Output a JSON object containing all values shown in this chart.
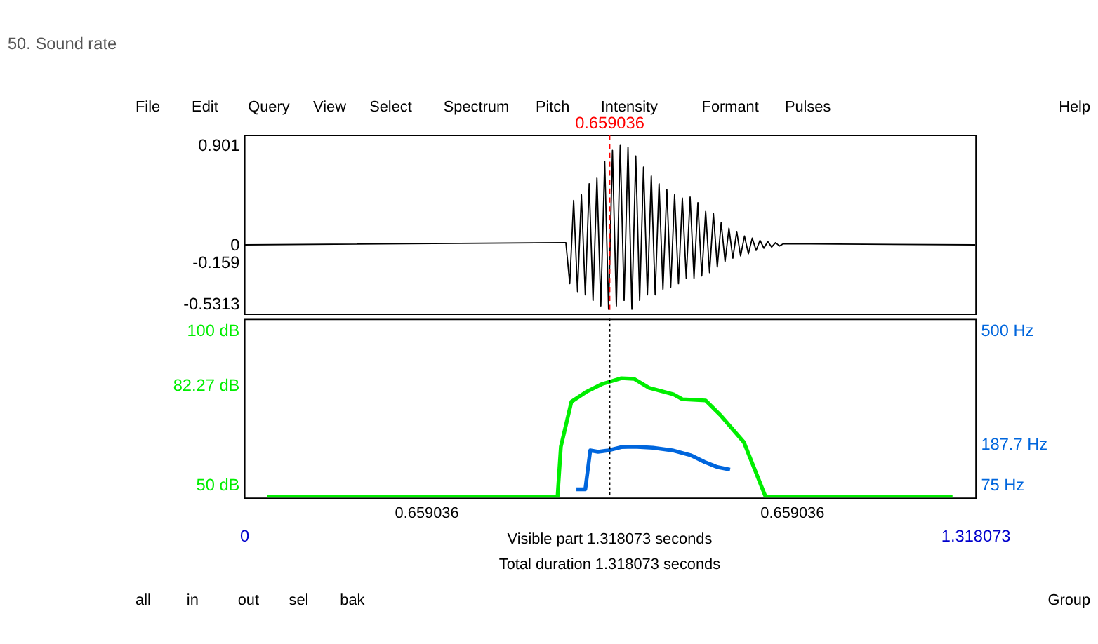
{
  "chart_data": [
    {
      "type": "line",
      "title": "50. Sound rate",
      "xlim": [
        0,
        1.318073
      ],
      "ylim": [
        -0.62,
        0.99
      ],
      "yticks": [
        0.901,
        0,
        -0.159,
        -0.5313
      ],
      "tick_labels": "y",
      "grid": false,
      "ref_lines": [
        {
          "axis": "x",
          "value": 0.659036,
          "label": "0.659036",
          "color": "#ff0000",
          "line_style": "dashed"
        }
      ],
      "annotations": [
        "File",
        "Edit",
        "Query",
        "View",
        "Select",
        "Spectrum",
        "Pitch",
        "Intensity",
        "Formant",
        "Pulses",
        "Help"
      ],
      "series": [
        {
          "color": "#000000",
          "x": [
            0,
            0.58,
            0.587,
            0.594,
            0.601,
            0.608,
            0.615,
            0.622,
            0.629,
            0.636,
            0.643,
            0.65,
            0.657,
            0.664,
            0.671,
            0.678,
            0.685,
            0.692,
            0.699,
            0.706,
            0.713,
            0.72,
            0.727,
            0.734,
            0.741,
            0.748,
            0.755,
            0.762,
            0.769,
            0.776,
            0.783,
            0.79,
            0.797,
            0.804,
            0.811,
            0.818,
            0.825,
            0.832,
            0.839,
            0.846,
            0.853,
            0.86,
            0.867,
            0.874,
            0.881,
            0.888,
            0.895,
            0.902,
            0.909,
            0.916,
            0.923,
            0.93,
            0.937,
            0.944,
            0.951,
            0.958,
            0.965,
            0.972,
            1.318073
          ],
          "values": [
            0,
            0.02,
            -0.35,
            0.4,
            -0.42,
            0.45,
            -0.45,
            0.55,
            -0.5,
            0.6,
            -0.55,
            0.75,
            -0.58,
            0.85,
            -0.55,
            0.9,
            -0.5,
            0.88,
            -0.58,
            0.8,
            -0.5,
            0.7,
            -0.45,
            0.62,
            -0.45,
            0.55,
            -0.4,
            0.5,
            -0.38,
            0.45,
            -0.35,
            0.42,
            -0.3,
            0.43,
            -0.3,
            0.38,
            -0.28,
            0.3,
            -0.25,
            0.28,
            -0.2,
            0.2,
            -0.15,
            0.15,
            -0.12,
            0.12,
            -0.1,
            0.08,
            -0.08,
            0.06,
            -0.05,
            0.04,
            -0.03,
            0.03,
            -0.02,
            0.02,
            -0.01,
            0.01,
            0
          ]
        }
      ]
    },
    {
      "type": "line",
      "xlim": [
        0,
        1.318073
      ],
      "xticks": [
        0,
        1.318073
      ],
      "ylim": [
        45.9,
        103.7
      ],
      "yticks": [
        {
          "value": 100,
          "label": "100 dB"
        },
        {
          "value": 82.27,
          "label": "82.27 dB"
        },
        {
          "value": 50,
          "label": "50 dB"
        }
      ],
      "y2lim": [
        40,
        531.6
      ],
      "y2ticks": [
        {
          "value": 500,
          "label": "500 Hz"
        },
        {
          "value": 187.7,
          "label": "187.7 Hz"
        },
        {
          "value": 75,
          "label": "75 Hz"
        }
      ],
      "grid": false,
      "ref_lines": [
        {
          "axis": "x",
          "value": 0.659036,
          "color": "#000000",
          "line_style": "dotted"
        }
      ],
      "annotations": [
        "0.659036",
        "0.659036",
        "Visible part 1.318073 seconds",
        "Total duration 1.318073 seconds",
        "all",
        "in",
        "out",
        "sel",
        "bak",
        "Group"
      ],
      "series": [
        {
          "color": "#00ee00",
          "x": [
            0.041,
            0.558,
            0.565,
            0.571,
            0.59,
            0.618,
            0.645,
            0.68,
            0.703,
            0.73,
            0.774,
            0.79,
            0.832,
            0.86,
            0.901,
            0.94,
            1.277
          ],
          "values": [
            46.2,
            46.2,
            46.2,
            62.4,
            76.9,
            80.2,
            82.6,
            84.5,
            84.3,
            81.4,
            79.3,
            77.7,
            77.3,
            72.3,
            63.8,
            46.2,
            46.2
          ]
        },
        {
          "color": "#0066dd",
          "axis": "y2",
          "x": [
            0.599,
            0.615,
            0.624,
            0.638,
            0.657,
            0.68,
            0.703,
            0.737,
            0.772,
            0.806,
            0.83,
            0.853,
            0.876
          ],
          "values": [
            63,
            63,
            170,
            166,
            170,
            179,
            180,
            177,
            170,
            156,
            138,
            124,
            117
          ]
        }
      ]
    }
  ]
}
